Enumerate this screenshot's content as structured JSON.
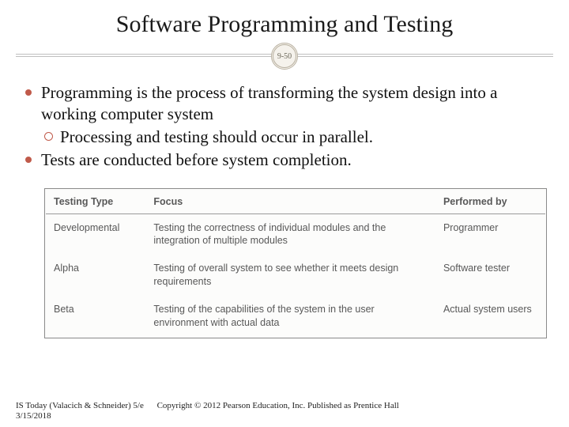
{
  "title": "Software Programming and Testing",
  "slide_number": "9-50",
  "colors": {
    "bullet_accent": "#c05a4a",
    "divider": "#bfbfbf",
    "circle_bg": "#f5f2ec",
    "circle_border": "#b8b0a0",
    "text": "#111111",
    "table_text": "#585858",
    "table_border": "#8a8a8a"
  },
  "typography": {
    "title_fontsize": 30,
    "body_fontsize": 21,
    "table_fontsize": 12.5,
    "footer_fontsize": 11,
    "title_family": "Georgia, serif",
    "table_family": "Arial, Helvetica, sans-serif"
  },
  "bullets": {
    "b1": "Programming is the process of transforming the system design into a working computer system",
    "b1_sub1": "Processing and testing should occur in parallel.",
    "b2": "Tests are conducted before system completion."
  },
  "table": {
    "type": "table",
    "columns": [
      "Testing Type",
      "Focus",
      "Performed by"
    ],
    "col_widths_pct": [
      20,
      58,
      22
    ],
    "header_border_color": "#9a9a9a",
    "background_color": "#fcfcfb",
    "rows": [
      [
        "Developmental",
        "Testing the correctness of individual modules and the integration of multiple modules",
        "Programmer"
      ],
      [
        "Alpha",
        "Testing of overall system to see whether it meets design requirements",
        "Software tester"
      ],
      [
        "Beta",
        "Testing of the capabilities of the system in the user environment with actual data",
        "Actual system users"
      ]
    ]
  },
  "footer": {
    "left": "IS Today (Valacich & Schneider) 5/e",
    "copyright": "Copyright © 2012 Pearson Education, Inc. Published as Prentice Hall",
    "date": "3/15/2018"
  }
}
